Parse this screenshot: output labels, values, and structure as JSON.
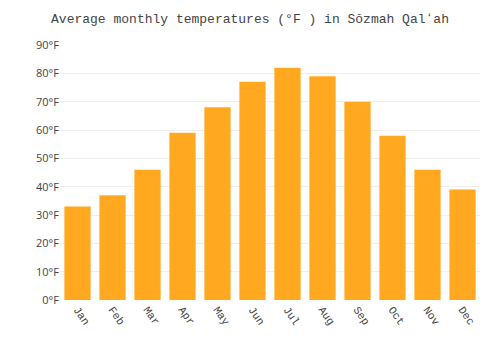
{
  "chart_data": {
    "type": "bar",
    "title": "Average monthly temperatures (°F ) in Sŏzmah Qalʻah",
    "categories": [
      "Jan",
      "Feb",
      "Mar",
      "Apr",
      "May",
      "Jun",
      "Jul",
      "Aug",
      "Sep",
      "Oct",
      "Nov",
      "Dec"
    ],
    "values": [
      33,
      37,
      46,
      59,
      68,
      77,
      82,
      79,
      70,
      58,
      46,
      39
    ],
    "color": "#FFA820",
    "ylim": [
      0,
      90
    ],
    "yticks": [
      {
        "value": 0,
        "label": "0°F"
      },
      {
        "value": 10,
        "label": "10°F"
      },
      {
        "value": 20,
        "label": "20°F"
      },
      {
        "value": 30,
        "label": "30°F"
      },
      {
        "value": 40,
        "label": "40°F"
      },
      {
        "value": 50,
        "label": "50°F"
      },
      {
        "value": 60,
        "label": "60°F"
      },
      {
        "value": 70,
        "label": "70°F"
      },
      {
        "value": 80,
        "label": "80°F"
      },
      {
        "value": 90,
        "label": "90°F"
      }
    ],
    "grid": true
  }
}
